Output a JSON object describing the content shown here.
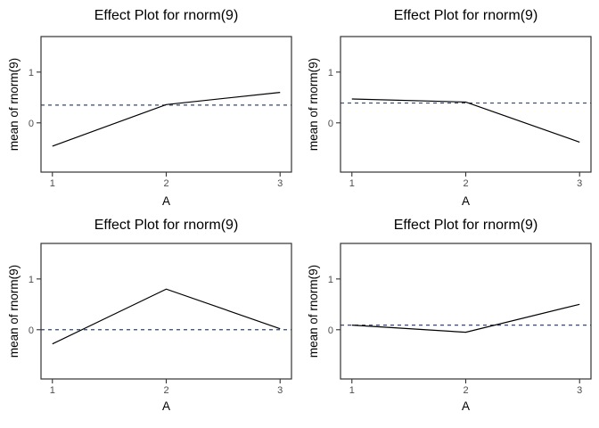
{
  "figure": {
    "background": "#ffffff",
    "layout": "2x2 grid of identical effect plots, no gridlines, no legend"
  },
  "colors": {
    "line": "#000000",
    "mean_line": "#33486e",
    "panel_border": "#333333",
    "tick": "#333333",
    "tick_label": "#4d4d4d",
    "axis_title": "#000000",
    "title": "#000000",
    "background": "#ffffff"
  },
  "chart_data": [
    {
      "type": "line",
      "position": "top-left",
      "title": "Effect Plot for rnorm(9)",
      "xlabel": "A",
      "ylabel": "mean of rnorm(9)",
      "x": [
        1,
        2,
        3
      ],
      "y": [
        -0.46,
        0.36,
        0.6
      ],
      "mean_line": 0.35,
      "mean_line_style": "dashed",
      "xticks": [
        "1",
        "2",
        "3"
      ],
      "xtick_values": [
        1,
        2,
        3
      ],
      "yticks": [
        "0",
        "1"
      ],
      "ytick_values": [
        0,
        1
      ],
      "xlim": [
        0.9,
        3.1
      ],
      "ylim": [
        -0.97,
        1.7
      ],
      "grid": false,
      "legend": false
    },
    {
      "type": "line",
      "position": "top-right",
      "title": "Effect Plot for rnorm(9)",
      "xlabel": "A",
      "ylabel": "mean of rnorm(9)",
      "x": [
        1,
        2,
        3
      ],
      "y": [
        0.47,
        0.41,
        -0.38
      ],
      "mean_line": 0.39,
      "mean_line_style": "dashed",
      "xticks": [
        "1",
        "2",
        "3"
      ],
      "xtick_values": [
        1,
        2,
        3
      ],
      "yticks": [
        "0",
        "1"
      ],
      "ytick_values": [
        0,
        1
      ],
      "xlim": [
        0.9,
        3.1
      ],
      "ylim": [
        -0.97,
        1.7
      ],
      "grid": false,
      "legend": false
    },
    {
      "type": "line",
      "position": "bottom-left",
      "title": "Effect Plot for rnorm(9)",
      "xlabel": "A",
      "ylabel": "mean of rnorm(9)",
      "x": [
        1,
        2,
        3
      ],
      "y": [
        -0.28,
        0.8,
        0.02
      ],
      "mean_line": 0.0,
      "mean_line_style": "dashed",
      "xticks": [
        "1",
        "2",
        "3"
      ],
      "xtick_values": [
        1,
        2,
        3
      ],
      "yticks": [
        "0",
        "1"
      ],
      "ytick_values": [
        0,
        1
      ],
      "xlim": [
        0.9,
        3.1
      ],
      "ylim": [
        -0.97,
        1.7
      ],
      "grid": false,
      "legend": false
    },
    {
      "type": "line",
      "position": "bottom-right",
      "title": "Effect Plot for rnorm(9)",
      "xlabel": "A",
      "ylabel": "mean of rnorm(9)",
      "x": [
        1,
        2,
        3
      ],
      "y": [
        0.09,
        -0.05,
        0.5
      ],
      "mean_line": 0.09,
      "mean_line_style": "dashed",
      "xticks": [
        "1",
        "2",
        "3"
      ],
      "xtick_values": [
        1,
        2,
        3
      ],
      "yticks": [
        "0",
        "1"
      ],
      "ytick_values": [
        0,
        1
      ],
      "xlim": [
        0.9,
        3.1
      ],
      "ylim": [
        -0.97,
        1.7
      ],
      "grid": false,
      "legend": false
    }
  ]
}
